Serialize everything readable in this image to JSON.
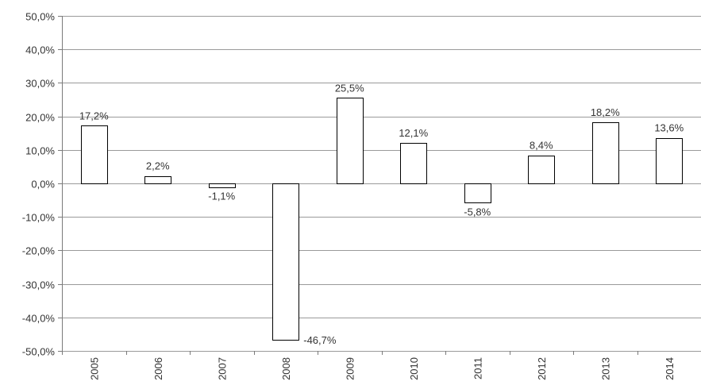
{
  "chart_data": {
    "type": "bar",
    "title": "",
    "xlabel": "",
    "ylabel": "",
    "categories": [
      "2005",
      "2006",
      "2007",
      "2008",
      "2009",
      "2010",
      "2011",
      "2012",
      "2013",
      "2014"
    ],
    "values": [
      17.2,
      2.2,
      -1.1,
      -46.7,
      25.5,
      12.1,
      -5.8,
      8.4,
      18.2,
      13.6
    ],
    "value_labels": [
      "17,2%",
      "2,2%",
      "-1,1%",
      "-46,7%",
      "25,5%",
      "12,1%",
      "-5,8%",
      "8,4%",
      "18,2%",
      "13,6%"
    ],
    "ylim": [
      -50,
      50
    ],
    "y_ticks": [
      50,
      40,
      30,
      20,
      10,
      0,
      -10,
      -20,
      -30,
      -40,
      -50
    ],
    "y_tick_labels": [
      "50,0%",
      "40,0%",
      "30,0%",
      "20,0%",
      "10,0%",
      "0,0%",
      "-10,0%",
      "-20,0%",
      "-30,0%",
      "-40,0%",
      "-50,0%"
    ],
    "grid": true,
    "legend": "none",
    "colors": {
      "bar_fill": "#ffffff",
      "bar_stroke": "#000000",
      "grid": "#9a9a9a"
    }
  }
}
